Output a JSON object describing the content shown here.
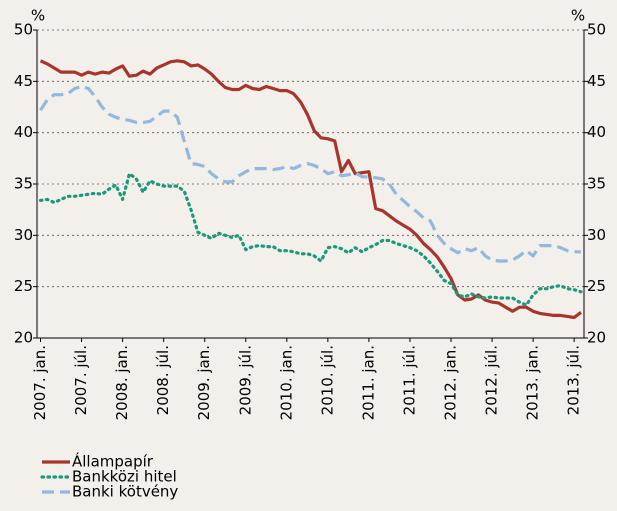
{
  "chart_data": {
    "type": "line",
    "y_label": "%",
    "y2_label": "%",
    "categories": [
      "2007. jan.",
      null,
      null,
      null,
      null,
      null,
      "2007. júl.",
      null,
      null,
      null,
      null,
      null,
      "2008. jan.",
      null,
      null,
      null,
      null,
      null,
      "2008. júl.",
      null,
      null,
      null,
      null,
      null,
      "2009. jan.",
      null,
      null,
      null,
      null,
      null,
      "2009. júl.",
      null,
      null,
      null,
      null,
      null,
      "2010. jan.",
      null,
      null,
      null,
      null,
      null,
      "2010. júl.",
      null,
      null,
      null,
      null,
      null,
      "2011. jan.",
      null,
      null,
      null,
      null,
      null,
      "2011. júl.",
      null,
      null,
      null,
      null,
      null,
      "2012. jan.",
      null,
      null,
      null,
      null,
      null,
      "2012. júl.",
      null,
      null,
      null,
      null,
      null,
      "2013. jan.",
      null,
      null,
      null,
      null,
      null,
      "2013. júl.",
      null
    ],
    "series": [
      {
        "name": "Állampapír",
        "color": "#a8352b",
        "style": "solid",
        "values": [
          47.0,
          46.7,
          46.3,
          45.9,
          45.9,
          45.9,
          45.6,
          45.9,
          45.7,
          45.9,
          45.8,
          46.2,
          46.5,
          45.5,
          45.6,
          46.0,
          45.7,
          46.3,
          46.6,
          46.9,
          47.0,
          46.9,
          46.5,
          46.6,
          46.2,
          45.7,
          45.0,
          44.4,
          44.2,
          44.2,
          44.6,
          44.3,
          44.2,
          44.5,
          44.3,
          44.1,
          44.1,
          43.8,
          43.0,
          41.8,
          40.2,
          39.5,
          39.4,
          39.2,
          36.2,
          37.3,
          36.0,
          36.1,
          36.2,
          32.6,
          32.4,
          31.9,
          31.4,
          31.0,
          30.6,
          30.0,
          29.2,
          28.6,
          27.9,
          26.9,
          25.8,
          24.2,
          23.7,
          23.8,
          24.2,
          23.7,
          23.5,
          23.4,
          23.0,
          22.6,
          23.0,
          23.0,
          22.6,
          22.4,
          22.3,
          22.2,
          22.2,
          22.1,
          22.0,
          22.5
        ]
      },
      {
        "name": "Bankközi hitel",
        "color": "#1a9a7a",
        "style": "dotted",
        "values": [
          33.4,
          33.5,
          33.2,
          33.5,
          33.8,
          33.8,
          33.9,
          34.0,
          34.1,
          34.0,
          34.5,
          34.9,
          33.5,
          36.0,
          35.5,
          34.2,
          35.3,
          35.0,
          34.8,
          34.8,
          34.8,
          34.3,
          32.5,
          30.3,
          30.0,
          29.7,
          30.2,
          30.0,
          29.8,
          30.0,
          28.6,
          28.9,
          29.0,
          28.9,
          28.9,
          28.5,
          28.5,
          28.4,
          28.2,
          28.2,
          28.0,
          27.5,
          28.8,
          28.9,
          28.7,
          28.3,
          28.8,
          28.4,
          28.8,
          29.1,
          29.5,
          29.5,
          29.2,
          29.0,
          28.8,
          28.5,
          28.0,
          27.3,
          26.5,
          25.6,
          25.3,
          24.2,
          24.0,
          24.3,
          24.0,
          23.9,
          24.0,
          23.9,
          23.9,
          23.9,
          23.5,
          23.2,
          24.2,
          24.8,
          24.8,
          25.0,
          25.1,
          24.8,
          24.7,
          24.5
        ]
      },
      {
        "name": "Banki kötvény",
        "color": "#92b8dd",
        "style": "dashed",
        "values": [
          42.2,
          43.2,
          43.7,
          43.7,
          43.8,
          44.3,
          44.5,
          44.3,
          43.5,
          42.5,
          41.8,
          41.5,
          41.3,
          41.2,
          41.0,
          41.0,
          41.1,
          41.6,
          42.1,
          42.1,
          41.5,
          39.2,
          37.0,
          36.9,
          36.7,
          36.0,
          35.5,
          35.2,
          35.2,
          35.8,
          36.2,
          36.5,
          36.5,
          36.5,
          36.4,
          36.5,
          36.7,
          36.5,
          36.8,
          37.0,
          36.8,
          36.5,
          36.0,
          36.2,
          35.8,
          35.9,
          36.1,
          35.7,
          35.7,
          35.6,
          35.5,
          35.0,
          34.0,
          33.4,
          32.8,
          32.3,
          31.7,
          31.4,
          30.0,
          29.2,
          28.7,
          28.3,
          28.7,
          28.5,
          28.8,
          28.0,
          27.6,
          27.5,
          27.5,
          27.6,
          28.0,
          28.5,
          28.0,
          29.0,
          29.0,
          29.0,
          28.8,
          28.5,
          28.4,
          28.4
        ]
      }
    ],
    "ylim": [
      20,
      50
    ],
    "yticks": [
      20,
      25,
      30,
      35,
      40,
      45,
      50
    ],
    "y2lim": [
      20,
      50
    ],
    "y2ticks": [
      20,
      25,
      30,
      35,
      40,
      45,
      50
    ],
    "grid": true,
    "legend": "bottom-left"
  }
}
